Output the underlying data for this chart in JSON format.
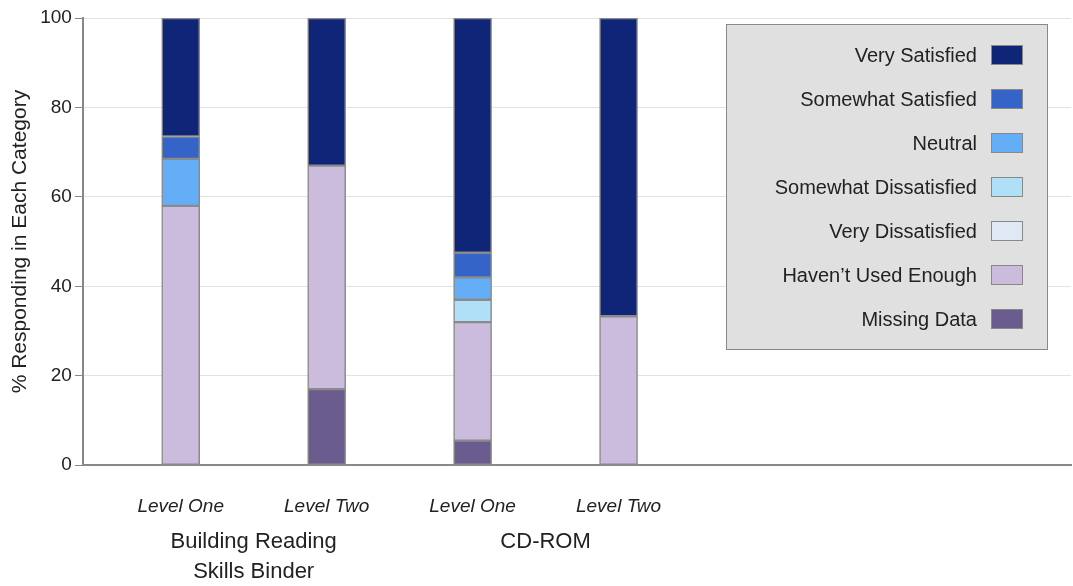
{
  "chart_data": {
    "type": "bar",
    "stacked": true,
    "ylabel": "% Responding in Each Category",
    "categories": [
      "Level One",
      "Level Two",
      "Level One",
      "Level Two"
    ],
    "series": [
      {
        "name": "Missing Data",
        "color": "#6a5c8e",
        "values": [
          0,
          17,
          5.5,
          0
        ]
      },
      {
        "name": "Haven’t Used Enough",
        "color": "#cbbcdd",
        "values": [
          58,
          50,
          26.5,
          33.3
        ]
      },
      {
        "name": "Very Dissatisfied",
        "color": "#e0e8f4",
        "values": [
          0,
          0,
          0,
          0
        ]
      },
      {
        "name": "Somewhat Dissatisfied",
        "color": "#b0e0f8",
        "values": [
          0,
          0,
          5,
          0
        ]
      },
      {
        "name": "Neutral",
        "color": "#64aef8",
        "values": [
          10.5,
          0,
          5,
          0
        ]
      },
      {
        "name": "Somewhat Satisfied",
        "color": "#3464c8",
        "values": [
          5,
          0,
          5.5,
          0
        ]
      },
      {
        "name": "Very Satisfied",
        "color": "#0f2577",
        "values": [
          26.5,
          33,
          52.5,
          66.7
        ]
      }
    ],
    "ylim": [
      0,
      100
    ],
    "yticks": [
      0,
      20,
      40,
      60,
      80,
      100
    ],
    "grid": "y",
    "legend": "top right",
    "annotations": [
      "Building Reading Skills Binder",
      "CD-ROM"
    ]
  }
}
